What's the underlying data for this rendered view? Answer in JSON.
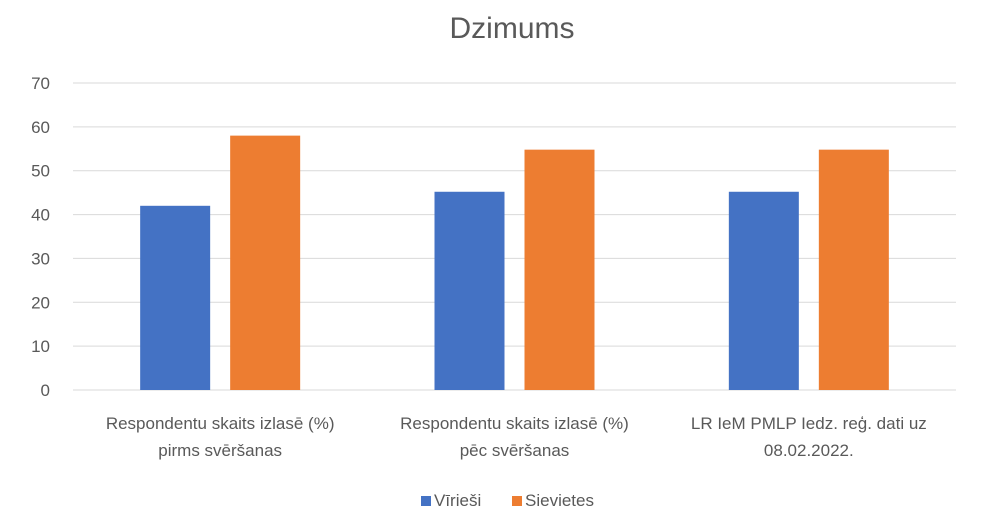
{
  "chart_data": {
    "type": "bar",
    "title": "Dzimums",
    "xlabel": "",
    "ylabel": "",
    "ylim": [
      0,
      70
    ],
    "yticks": [
      0,
      10,
      20,
      30,
      40,
      50,
      60,
      70
    ],
    "grid": true,
    "legend_position": "bottom",
    "categories": [
      [
        "Respondentu skaits izlasē (%)",
        "pirms svēršanas"
      ],
      [
        "Respondentu skaits izlasē (%)",
        "pēc svēršanas"
      ],
      [
        "LR IeM PMLP Iedz. reģ. dati uz",
        "08.02.2022."
      ]
    ],
    "series": [
      {
        "name": "Vīrieši",
        "color": "#4472c4",
        "values": [
          42,
          45.2,
          45.2
        ]
      },
      {
        "name": "Sievietes",
        "color": "#ed7d31",
        "values": [
          58,
          54.8,
          54.8
        ]
      }
    ]
  }
}
